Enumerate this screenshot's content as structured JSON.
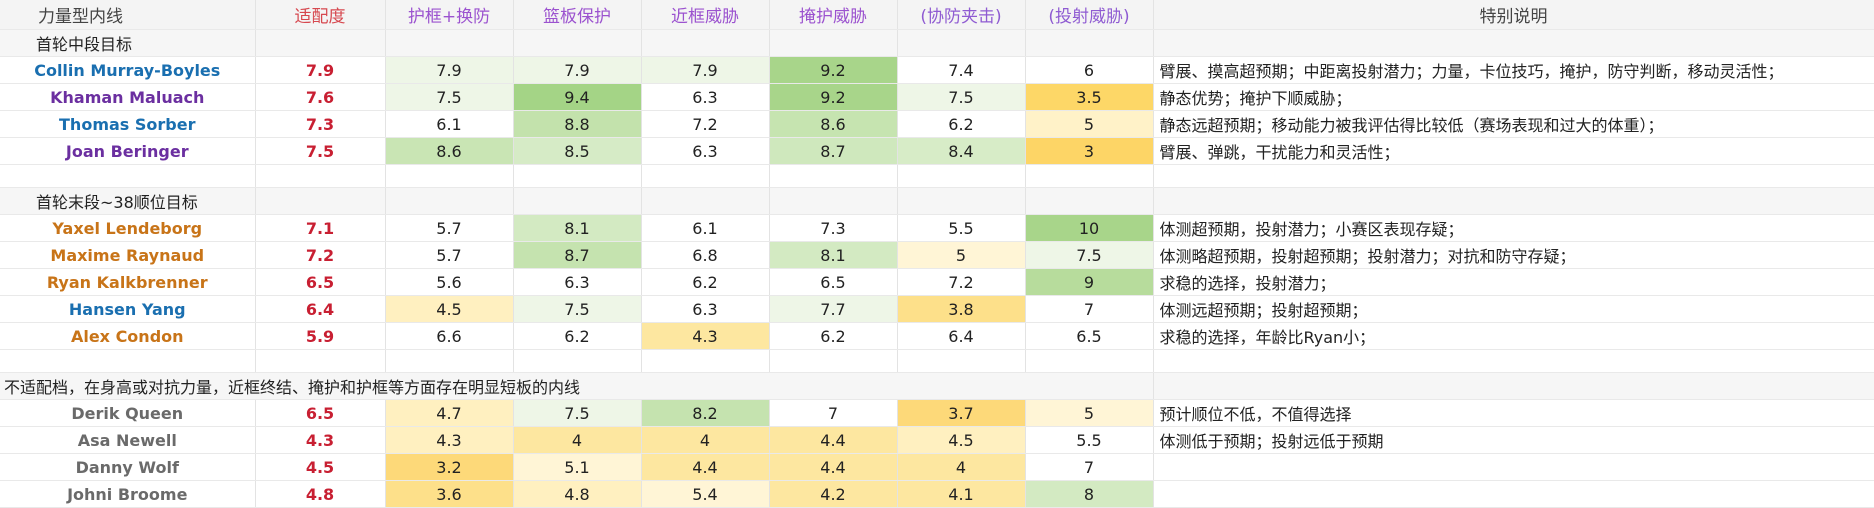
{
  "headers": {
    "title": "力量型内线",
    "fit": "适配度",
    "rim_switch": "护框+换防",
    "rebound": "篮板保护",
    "inside": "近框威胁",
    "screen": "掩护威胁",
    "help_def": "(协防夹击)",
    "shooting": "(投射威胁)",
    "notes": "特别说明"
  },
  "sections": [
    {
      "title": "首轮中段目标",
      "rows": [
        {
          "name": "Collin Murray-Boyles",
          "color": "#1a6fb0",
          "fit": "7.9",
          "vals": [
            "7.9",
            "7.9",
            "7.9",
            "9.2",
            "7.4",
            "6"
          ],
          "bgs": [
            "#ffffff",
            "#eef6e7",
            "#eef6e7",
            "#eef6e7",
            "#a8d58a",
            "#ffffff",
            "#ffffff"
          ],
          "note": "臂展、摸高超预期；中距离投射潜力；力量，卡位技巧，掩护，防守判断，移动灵活性；"
        },
        {
          "name": "Khaman Maluach",
          "color": "#6b2fa0",
          "fit": "7.6",
          "vals": [
            "7.5",
            "9.4",
            "6.3",
            "9.2",
            "7.5",
            "3.5"
          ],
          "bgs": [
            "#ffffff",
            "#eef6e7",
            "#a4d486",
            "#ffffff",
            "#a8d58a",
            "#eef6e7",
            "#fdd767"
          ],
          "note": "静态优势；掩护下顺威胁；"
        },
        {
          "name": "Thomas Sorber",
          "color": "#1a6fb0",
          "fit": "7.3",
          "vals": [
            "6.1",
            "8.8",
            "7.2",
            "8.6",
            "6.2",
            "5"
          ],
          "bgs": [
            "#ffffff",
            "#ffffff",
            "#c3e2ac",
            "#ffffff",
            "#c6e4b0",
            "#ffffff",
            "#fff2c8"
          ],
          "note": "静态远超预期；移动能力被我评估得比较低（赛场表现和过大的体重）；"
        },
        {
          "name": "Joan Beringer",
          "color": "#6b2fa0",
          "fit": "7.5",
          "vals": [
            "8.6",
            "8.5",
            "6.3",
            "8.7",
            "8.4",
            "3"
          ],
          "bgs": [
            "#ffffff",
            "#c9e5b4",
            "#d6ebc6",
            "#ffffff",
            "#cfe8bd",
            "#d7ecc7",
            "#fdd566"
          ],
          "note": "臂展、弹跳，干扰能力和灵活性；"
        }
      ]
    },
    {
      "title": "首轮末段~38顺位目标",
      "rows": [
        {
          "name": "Yaxel Lendeborg",
          "color": "#c87418",
          "fit": "7.1",
          "vals": [
            "5.7",
            "8.1",
            "6.1",
            "7.3",
            "5.5",
            "10"
          ],
          "bgs": [
            "#ffffff",
            "#ffffff",
            "#d3eac2",
            "#ffffff",
            "#ffffff",
            "#ffffff",
            "#a8d58a"
          ],
          "note": "体测超预期，投射潜力；小赛区表现存疑；"
        },
        {
          "name": "Maxime Raynaud",
          "color": "#c87418",
          "fit": "7.2",
          "vals": [
            "5.7",
            "8.7",
            "6.8",
            "8.1",
            "5",
            "7.5"
          ],
          "bgs": [
            "#ffffff",
            "#ffffff",
            "#c5e3af",
            "#ffffff",
            "#d3eac2",
            "#fff5d6",
            "#eef6e7"
          ],
          "note": "体测略超预期，投射超预期；投射潜力；对抗和防守存疑；"
        },
        {
          "name": "Ryan Kalkbrenner",
          "color": "#c87418",
          "fit": "6.5",
          "vals": [
            "5.6",
            "6.3",
            "6.2",
            "6.5",
            "7.2",
            "9"
          ],
          "bgs": [
            "#ffffff",
            "#ffffff",
            "#ffffff",
            "#ffffff",
            "#ffffff",
            "#ffffff",
            "#b7dc9c"
          ],
          "note": "求稳的选择，投射潜力；"
        },
        {
          "name": "Hansen Yang",
          "color": "#1a6fb0",
          "fit": "6.4",
          "vals": [
            "4.5",
            "7.5",
            "6.3",
            "7.7",
            "3.8",
            "7"
          ],
          "bgs": [
            "#ffffff",
            "#fff0c0",
            "#eef6e7",
            "#ffffff",
            "#eef6e7",
            "#fde08a",
            "#ffffff"
          ],
          "note": "体测远超预期；投射超预期；"
        },
        {
          "name": "Alex Condon",
          "color": "#c87418",
          "fit": "5.9",
          "vals": [
            "6.6",
            "6.2",
            "4.3",
            "6.2",
            "6.4",
            "6.5"
          ],
          "bgs": [
            "#ffffff",
            "#ffffff",
            "#ffffff",
            "#fde7a0",
            "#ffffff",
            "#ffffff",
            "#ffffff"
          ],
          "note": "求稳的选择，年龄比Ryan小；"
        }
      ]
    },
    {
      "title": "不适配档，在身高或对抗力量，近框终结、掩护和护框等方面存在明显短板的内线",
      "rows": [
        {
          "name": "Derik Queen",
          "color": "#6a6a6a",
          "fit": "6.5",
          "vals": [
            "4.7",
            "7.5",
            "8.2",
            "7",
            "3.7",
            "5"
          ],
          "bgs": [
            "#ffffff",
            "#fff0c0",
            "#eef6e7",
            "#c5e3af",
            "#ffffff",
            "#fdd979",
            "#fff5d6"
          ],
          "note": "预计顺位不低，不值得选择"
        },
        {
          "name": "Asa Newell",
          "color": "#6a6a6a",
          "fit": "4.3",
          "vals": [
            "4.3",
            "4",
            "4",
            "4.4",
            "4.5",
            "5.5"
          ],
          "bgs": [
            "#ffffff",
            "#fff0c0",
            "#fde7a0",
            "#fde7a0",
            "#fde7a0",
            "#fff0c0",
            "#ffffff"
          ],
          "note": "体测低于预期；投射远低于预期"
        },
        {
          "name": "Danny Wolf",
          "color": "#6a6a6a",
          "fit": "4.5",
          "vals": [
            "3.2",
            "5.1",
            "4.4",
            "4.4",
            "4",
            "7"
          ],
          "bgs": [
            "#ffffff",
            "#fdd979",
            "#fff5d6",
            "#fde7a0",
            "#fde7a0",
            "#fde7a0",
            "#ffffff"
          ],
          "note": ""
        },
        {
          "name": "Johni Broome",
          "color": "#6a6a6a",
          "fit": "4.8",
          "vals": [
            "3.6",
            "4.8",
            "5.4",
            "4.2",
            "4.1",
            "8"
          ],
          "bgs": [
            "#ffffff",
            "#fde08a",
            "#fff0c0",
            "#fff5d6",
            "#fde7a0",
            "#fde7a0",
            "#d3eac2"
          ],
          "note": ""
        }
      ]
    }
  ]
}
